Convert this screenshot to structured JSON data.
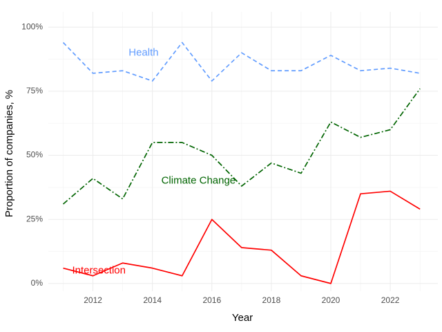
{
  "chart_data": {
    "type": "line",
    "title": "",
    "xlabel": "Year",
    "ylabel": "Proportion of companies, %",
    "x": [
      2011,
      2012,
      2013,
      2014,
      2015,
      2016,
      2017,
      2018,
      2019,
      2020,
      2021,
      2022,
      2023
    ],
    "xlim": [
      2010.5,
      2023.6
    ],
    "ylim": [
      -3,
      106
    ],
    "x_ticks": [
      2012,
      2014,
      2016,
      2018,
      2020,
      2022
    ],
    "x_tick_labels": [
      "2012",
      "2014",
      "2016",
      "2018",
      "2020",
      "2022"
    ],
    "y_ticks": [
      0,
      25,
      50,
      75,
      100
    ],
    "y_tick_labels": [
      "0%",
      "25%",
      "50%",
      "75%",
      "100%"
    ],
    "grid": true,
    "legend": "none (direct series labels)",
    "series": [
      {
        "name": "Health",
        "color": "#619CFF",
        "dash": "dashed",
        "values": [
          94,
          82,
          83,
          79,
          94,
          79,
          90,
          83,
          83,
          89,
          83,
          84,
          82
        ],
        "label_at": [
          2013.2,
          90
        ]
      },
      {
        "name": "Climate Change",
        "color": "#006400",
        "dash": "dotdash",
        "values": [
          31,
          41,
          33,
          55,
          55,
          50,
          38,
          47,
          43,
          63,
          57,
          60,
          76
        ],
        "label_at": [
          2014.3,
          40
        ]
      },
      {
        "name": "Intersection",
        "color": "#FF0000",
        "dash": "solid",
        "values": [
          6,
          3,
          8,
          6,
          3,
          25,
          14,
          13,
          3,
          0,
          35,
          36,
          29
        ],
        "label_at": [
          2011.3,
          5
        ]
      }
    ]
  }
}
